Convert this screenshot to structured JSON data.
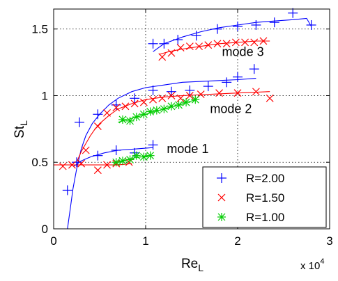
{
  "chart_data": {
    "type": "scatter",
    "xlabel_main": "Re",
    "xlabel_sub": "L",
    "ylabel_main": "St",
    "ylabel_sub": "L",
    "x_multiplier_base": "x 10",
    "x_multiplier_exp": "4",
    "xlim": [
      0,
      30000
    ],
    "ylim": [
      0,
      1.65
    ],
    "xticks": [
      0,
      10000,
      20000,
      30000
    ],
    "xtick_labels": [
      "0",
      "1",
      "2",
      "3"
    ],
    "yticks": [
      0,
      0.5,
      1,
      1.5
    ],
    "ytick_labels": [
      "0",
      "0.5",
      "1",
      "1.5"
    ],
    "grid": true,
    "legend_position": "bottom-right",
    "annotations": [
      {
        "text": "mode 3",
        "x": 18300,
        "y": 1.33
      },
      {
        "text": "mode 2",
        "x": 17000,
        "y": 0.9
      },
      {
        "text": "mode 1",
        "x": 12300,
        "y": 0.6
      }
    ],
    "series": [
      {
        "name": "R=2.00",
        "marker": "plus",
        "color": "#0000ff",
        "points": [
          [
            1500,
            0.29
          ],
          [
            2800,
            0.8
          ],
          [
            4800,
            0.86
          ],
          [
            6800,
            0.93
          ],
          [
            8800,
            0.98
          ],
          [
            10800,
            1.04
          ],
          [
            12800,
            1.03
          ],
          [
            14800,
            1.04
          ],
          [
            16800,
            1.07
          ],
          [
            18800,
            1.1
          ],
          [
            20000,
            1.14
          ],
          [
            21800,
            1.2
          ],
          [
            2500,
            0.5
          ],
          [
            4800,
            0.55
          ],
          [
            6800,
            0.59
          ],
          [
            8800,
            0.57
          ],
          [
            10800,
            0.63
          ],
          [
            10800,
            1.39
          ],
          [
            12000,
            1.39
          ],
          [
            13500,
            1.42
          ],
          [
            15500,
            1.45
          ],
          [
            17800,
            1.5
          ],
          [
            20000,
            1.52
          ],
          [
            22000,
            1.53
          ],
          [
            24000,
            1.55
          ],
          [
            26000,
            1.62
          ],
          [
            28000,
            1.53
          ]
        ]
      },
      {
        "name": "R=1.50",
        "marker": "x",
        "color": "#ff0000",
        "points": [
          [
            1000,
            0.47
          ],
          [
            2000,
            0.48
          ],
          [
            3000,
            0.49
          ],
          [
            3500,
            0.59
          ],
          [
            4800,
            0.44
          ],
          [
            5800,
            0.48
          ],
          [
            6800,
            0.49
          ],
          [
            8200,
            0.5
          ],
          [
            4800,
            0.77
          ],
          [
            5800,
            0.87
          ],
          [
            6800,
            0.91
          ],
          [
            7800,
            0.92
          ],
          [
            8800,
            0.94
          ],
          [
            9800,
            0.95
          ],
          [
            10800,
            0.97
          ],
          [
            11800,
            0.98
          ],
          [
            12800,
            1.0
          ],
          [
            13800,
            0.98
          ],
          [
            14800,
            1.0
          ],
          [
            16000,
            1.01
          ],
          [
            18000,
            1.02
          ],
          [
            20000,
            1.02
          ],
          [
            22000,
            1.03
          ],
          [
            23500,
            0.98
          ],
          [
            11800,
            1.29
          ],
          [
            12800,
            1.32
          ],
          [
            13800,
            1.36
          ],
          [
            14800,
            1.37
          ],
          [
            15800,
            1.37
          ],
          [
            16800,
            1.38
          ],
          [
            17800,
            1.39
          ],
          [
            18800,
            1.39
          ],
          [
            19800,
            1.4
          ],
          [
            20800,
            1.4
          ],
          [
            21800,
            1.4
          ],
          [
            22800,
            1.41
          ]
        ]
      },
      {
        "name": "R=1.00",
        "marker": "star",
        "color": "#00cc00",
        "points": [
          [
            6800,
            0.5
          ],
          [
            7500,
            0.51
          ],
          [
            8300,
            0.52
          ],
          [
            9000,
            0.55
          ],
          [
            9800,
            0.54
          ],
          [
            10500,
            0.55
          ],
          [
            7500,
            0.82
          ],
          [
            8300,
            0.81
          ],
          [
            9000,
            0.84
          ],
          [
            9800,
            0.86
          ],
          [
            10500,
            0.88
          ],
          [
            11200,
            0.89
          ],
          [
            12000,
            0.9
          ],
          [
            12800,
            0.92
          ],
          [
            13600,
            0.93
          ],
          [
            14400,
            0.95
          ],
          [
            15400,
            0.97
          ]
        ]
      }
    ],
    "fit_curves": [
      {
        "color": "#0000ff",
        "points": [
          [
            1500,
            0
          ],
          [
            1800,
            0.15
          ],
          [
            2100,
            0.3
          ],
          [
            2500,
            0.45
          ],
          [
            3000,
            0.6
          ],
          [
            3500,
            0.7
          ],
          [
            4200,
            0.79
          ],
          [
            5000,
            0.86
          ],
          [
            6000,
            0.93
          ],
          [
            7000,
            0.98
          ],
          [
            8500,
            1.03
          ],
          [
            10000,
            1.06
          ],
          [
            12000,
            1.08
          ],
          [
            14000,
            1.1
          ],
          [
            17000,
            1.11
          ],
          [
            20000,
            1.12
          ],
          [
            22000,
            1.13
          ]
        ]
      },
      {
        "color": "#0000ff",
        "points": [
          [
            2200,
            0.47
          ],
          [
            3000,
            0.51
          ],
          [
            4000,
            0.54
          ],
          [
            5500,
            0.57
          ],
          [
            7000,
            0.59
          ],
          [
            9000,
            0.6
          ],
          [
            10800,
            0.61
          ]
        ]
      },
      {
        "color": "#0000ff",
        "points": [
          [
            10800,
            1.33
          ],
          [
            12000,
            1.39
          ],
          [
            14000,
            1.44
          ],
          [
            16000,
            1.48
          ],
          [
            18000,
            1.51
          ],
          [
            20000,
            1.53
          ],
          [
            22000,
            1.55
          ],
          [
            24000,
            1.56
          ],
          [
            26000,
            1.57
          ],
          [
            27500,
            1.58
          ],
          [
            28000,
            1.52
          ]
        ]
      },
      {
        "color": "#ff0000",
        "points": [
          [
            2500,
            0.5
          ],
          [
            3000,
            0.58
          ],
          [
            3500,
            0.64
          ],
          [
            4000,
            0.7
          ],
          [
            4500,
            0.75
          ],
          [
            5000,
            0.79
          ],
          [
            6000,
            0.85
          ],
          [
            7000,
            0.9
          ],
          [
            8500,
            0.94
          ],
          [
            10000,
            0.97
          ],
          [
            12000,
            0.99
          ],
          [
            14000,
            1.0
          ],
          [
            17000,
            1.01
          ],
          [
            20000,
            1.02
          ],
          [
            23500,
            1.03
          ]
        ]
      },
      {
        "color": "#ff0000",
        "points": [
          [
            0,
            0.48
          ],
          [
            1500,
            0.48
          ],
          [
            3000,
            0.48
          ],
          [
            5000,
            0.48
          ],
          [
            7000,
            0.48
          ],
          [
            8500,
            0.49
          ]
        ]
      },
      {
        "color": "#ff0000",
        "points": [
          [
            11500,
            1.31
          ],
          [
            12500,
            1.33
          ],
          [
            14000,
            1.35
          ],
          [
            16000,
            1.37
          ],
          [
            18000,
            1.39
          ],
          [
            20000,
            1.4
          ],
          [
            22000,
            1.41
          ],
          [
            23500,
            1.41
          ]
        ]
      },
      {
        "color": "#00cc00",
        "points": [
          [
            6500,
            0.49
          ],
          [
            7500,
            0.51
          ],
          [
            8500,
            0.53
          ],
          [
            9500,
            0.54
          ],
          [
            10500,
            0.55
          ]
        ]
      },
      {
        "color": "#00cc00",
        "points": [
          [
            7000,
            0.8
          ],
          [
            8000,
            0.82
          ],
          [
            9000,
            0.84
          ],
          [
            10000,
            0.86
          ],
          [
            11000,
            0.88
          ],
          [
            12000,
            0.9
          ],
          [
            13000,
            0.92
          ],
          [
            14000,
            0.94
          ],
          [
            15500,
            0.97
          ]
        ]
      }
    ]
  }
}
